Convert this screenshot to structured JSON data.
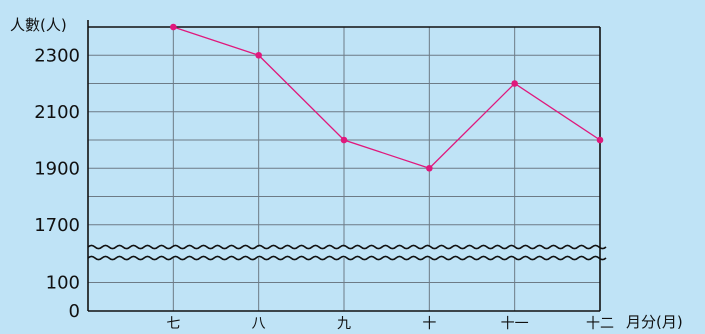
{
  "chart_data": {
    "type": "line",
    "ylabel": "人數(人)",
    "xlabel": "月分(月)",
    "categories": [
      "七",
      "八",
      "九",
      "十",
      "十一",
      "十二"
    ],
    "series": [
      {
        "values": [
          2400,
          2300,
          2000,
          1900,
          2200,
          2000
        ]
      }
    ],
    "y_ticks_upper": [
      1700,
      1900,
      2100,
      2300
    ],
    "y_ticks_lower": [
      0,
      100
    ],
    "upper_range": [
      1600,
      2400
    ],
    "lower_range": [
      0,
      200
    ],
    "axis_break": true,
    "grid": true,
    "colors": {
      "line": "#e0187c",
      "background": "#bfe3f6"
    }
  }
}
